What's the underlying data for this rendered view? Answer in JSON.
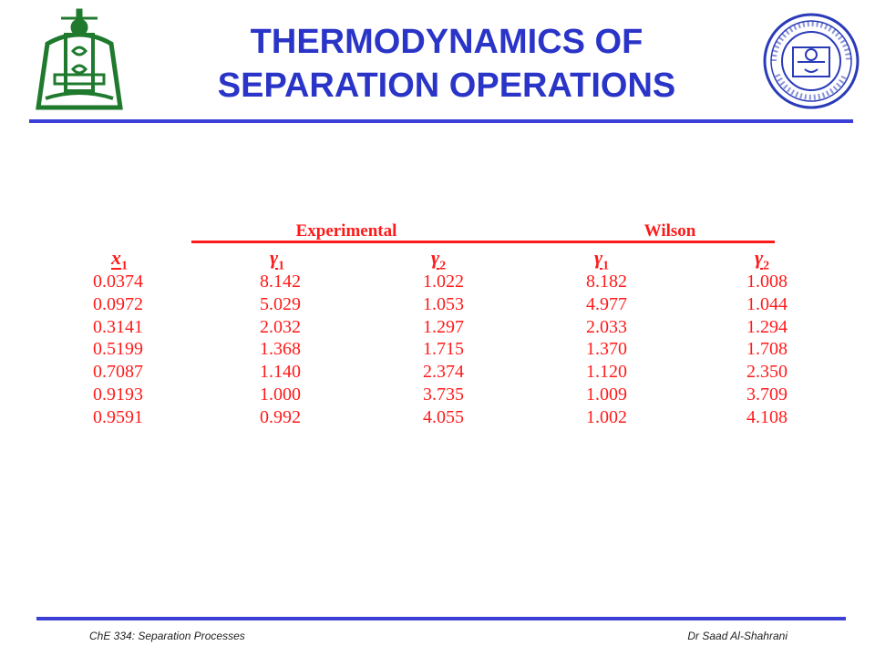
{
  "slide": {
    "title_line1": "THERMODYNAMICS OF",
    "title_line2": "SEPARATION OPERATIONS"
  },
  "table": {
    "groups": [
      "Experimental",
      "Wilson"
    ],
    "headers": [
      {
        "base": "x",
        "sub": "1"
      },
      {
        "base": "γ",
        "sub": "1"
      },
      {
        "base": "γ",
        "sub": "2"
      },
      {
        "base": "γ",
        "sub": "1"
      },
      {
        "base": "γ",
        "sub": "2"
      }
    ],
    "rows": [
      [
        "0.0374",
        "8.142",
        "1.022",
        "8.182",
        "1.008"
      ],
      [
        "0.0972",
        "5.029",
        "1.053",
        "4.977",
        "1.044"
      ],
      [
        "0.3141",
        "2.032",
        "1.297",
        "2.033",
        "1.294"
      ],
      [
        "0.5199",
        "1.368",
        "1.715",
        "1.370",
        "1.708"
      ],
      [
        "0.7087",
        "1.140",
        "2.374",
        "1.120",
        "2.350"
      ],
      [
        "0.9193",
        "1.000",
        "3.735",
        "1.009",
        "3.709"
      ],
      [
        "0.9591",
        "0.992",
        "4.055",
        "1.002",
        "4.108"
      ]
    ]
  },
  "footer": {
    "course": "ChE 334: Separation Processes",
    "author": "Dr Saad Al-Shahrani"
  },
  "colors": {
    "title": "#2a35c8",
    "rule": "#3b3fd6",
    "table": "#ff1a1a"
  }
}
